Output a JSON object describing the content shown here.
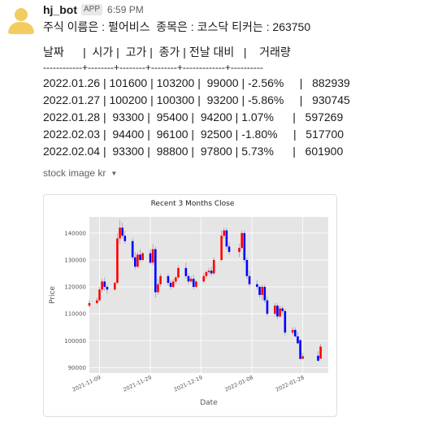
{
  "message": {
    "sender": "hj_bot",
    "badge": "APP",
    "time": "6:59 PM",
    "intro": "주식 이름은 : 펄어비스  종목은 : 코스닥 티커는 : 263750",
    "table_header": "날짜      |  시가 |  고가 |  종가 | 전날 대비   |    거래량",
    "table_divider": "------------+--------+--------+--------+-------------+----------",
    "rows": [
      "2022.01.26 | 101600 | 103200 |  99000 | -2.56%     |   882939",
      "2022.01.27 | 100200 | 100300 |  93200 | -5.86%     |   930745",
      "2022.01.28 |  93300 |  95400 |  94200 | 1.07%      |   597269",
      "2022.02.03 |  94400 |  96100 |  92500 | -1.80%     |   517700",
      "2022.02.04 |  93300 |  98800 |  97800 | 5.73%      |   601900"
    ],
    "attachment_label": "stock image kr"
  },
  "colors": {
    "up": "#ff0000",
    "down": "#0000ff",
    "plot_bg": "#e5e5e5",
    "grid": "#ffffff"
  },
  "chart_data": {
    "type": "candlestick",
    "title": "Recent 3 Months Close",
    "xlabel": "Date",
    "ylabel": "Price",
    "ylim": [
      88000,
      146000
    ],
    "yticks": [
      90000,
      100000,
      110000,
      120000,
      130000,
      140000
    ],
    "ytick_labels": [
      "90000",
      "100000",
      "110000",
      "120000",
      "130000",
      "140000"
    ],
    "xticks": [
      "2021-11-09",
      "2021-11-29",
      "2021-12-19",
      "2022-01-08",
      "2022-01-28"
    ],
    "xlim": [
      "2021-11-05",
      "2022-02-07"
    ],
    "grid": true,
    "candles": [
      {
        "date": "2021-11-05",
        "open": 113000,
        "high": 115000,
        "low": 112500,
        "close": 114000
      },
      {
        "date": "2021-11-08",
        "open": 114000,
        "high": 116000,
        "low": 113500,
        "close": 115000
      },
      {
        "date": "2021-11-09",
        "open": 115000,
        "high": 120000,
        "low": 114500,
        "close": 119000
      },
      {
        "date": "2021-11-10",
        "open": 119000,
        "high": 123000,
        "low": 118000,
        "close": 122000
      },
      {
        "date": "2021-11-11",
        "open": 122000,
        "high": 123500,
        "low": 118500,
        "close": 120000
      },
      {
        "date": "2021-11-12",
        "open": 120000,
        "high": 121000,
        "low": 117500,
        "close": 119000
      },
      {
        "date": "2021-11-15",
        "open": 119000,
        "high": 122000,
        "low": 118500,
        "close": 121500
      },
      {
        "date": "2021-11-16",
        "open": 121500,
        "high": 140000,
        "low": 121000,
        "close": 138000
      },
      {
        "date": "2021-11-17",
        "open": 138000,
        "high": 145000,
        "low": 136000,
        "close": 142000
      },
      {
        "date": "2021-11-18",
        "open": 142000,
        "high": 144000,
        "low": 138000,
        "close": 139000
      },
      {
        "date": "2021-11-19",
        "open": 139000,
        "high": 141000,
        "low": 136000,
        "close": 137000
      },
      {
        "date": "2021-11-22",
        "open": 137000,
        "high": 138000,
        "low": 130000,
        "close": 131000
      },
      {
        "date": "2021-11-23",
        "open": 131000,
        "high": 133000,
        "low": 126500,
        "close": 127500
      },
      {
        "date": "2021-11-24",
        "open": 127500,
        "high": 133000,
        "low": 127000,
        "close": 132000
      },
      {
        "date": "2021-11-25",
        "open": 132000,
        "high": 134000,
        "low": 129000,
        "close": 130000
      },
      {
        "date": "2021-11-26",
        "open": 130000,
        "high": 133000,
        "low": 129500,
        "close": 132500
      },
      {
        "date": "2021-11-29",
        "open": 132500,
        "high": 134000,
        "low": 128500,
        "close": 129000
      },
      {
        "date": "2021-11-30",
        "open": 129000,
        "high": 136000,
        "low": 128000,
        "close": 134000
      },
      {
        "date": "2021-12-01",
        "open": 134000,
        "high": 135000,
        "low": 116000,
        "close": 118000
      },
      {
        "date": "2021-12-02",
        "open": 118000,
        "high": 123000,
        "low": 117000,
        "close": 121000
      },
      {
        "date": "2021-12-03",
        "open": 121000,
        "high": 125000,
        "low": 120000,
        "close": 124000
      },
      {
        "date": "2021-12-06",
        "open": 124000,
        "high": 125000,
        "low": 120500,
        "close": 121500
      },
      {
        "date": "2021-12-07",
        "open": 121500,
        "high": 122500,
        "low": 119000,
        "close": 120000
      },
      {
        "date": "2021-12-08",
        "open": 120000,
        "high": 123000,
        "low": 119500,
        "close": 122000
      },
      {
        "date": "2021-12-09",
        "open": 122000,
        "high": 124000,
        "low": 121000,
        "close": 123500
      },
      {
        "date": "2021-12-10",
        "open": 123500,
        "high": 128000,
        "low": 123000,
        "close": 127000
      },
      {
        "date": "2021-12-13",
        "open": 127000,
        "high": 129000,
        "low": 123000,
        "close": 124000
      },
      {
        "date": "2021-12-14",
        "open": 124000,
        "high": 125000,
        "low": 121000,
        "close": 122000
      },
      {
        "date": "2021-12-15",
        "open": 122000,
        "high": 124000,
        "low": 121500,
        "close": 123000
      },
      {
        "date": "2021-12-16",
        "open": 123000,
        "high": 124500,
        "low": 119000,
        "close": 120000
      },
      {
        "date": "2021-12-17",
        "open": 120000,
        "high": 122500,
        "low": 119500,
        "close": 122000
      },
      {
        "date": "2021-12-20",
        "open": 122000,
        "high": 125000,
        "low": 121500,
        "close": 124000
      },
      {
        "date": "2021-12-21",
        "open": 124000,
        "high": 126000,
        "low": 123000,
        "close": 125500
      },
      {
        "date": "2021-12-22",
        "open": 125500,
        "high": 127000,
        "low": 124500,
        "close": 126000
      },
      {
        "date": "2021-12-23",
        "open": 126000,
        "high": 127500,
        "low": 124000,
        "close": 125000
      },
      {
        "date": "2021-12-24",
        "open": 125000,
        "high": 131000,
        "low": 124500,
        "close": 130000
      },
      {
        "date": "2021-12-27",
        "open": 130000,
        "high": 141000,
        "low": 129500,
        "close": 139000
      },
      {
        "date": "2021-12-28",
        "open": 139000,
        "high": 142000,
        "low": 138000,
        "close": 141000
      },
      {
        "date": "2021-12-29",
        "open": 141000,
        "high": 142000,
        "low": 134000,
        "close": 135000
      },
      {
        "date": "2021-12-30",
        "open": 135000,
        "high": 136500,
        "low": 132000,
        "close": 133000
      },
      {
        "date": "2022-01-03",
        "open": 133000,
        "high": 136000,
        "low": 131000,
        "close": 134500
      },
      {
        "date": "2022-01-04",
        "open": 134500,
        "high": 141000,
        "low": 134000,
        "close": 140000
      },
      {
        "date": "2022-01-05",
        "open": 140000,
        "high": 141000,
        "low": 129000,
        "close": 130000
      },
      {
        "date": "2022-01-06",
        "open": 130000,
        "high": 131000,
        "low": 123000,
        "close": 124000
      },
      {
        "date": "2022-01-07",
        "open": 124000,
        "high": 126000,
        "low": 120000,
        "close": 121000
      },
      {
        "date": "2022-01-10",
        "open": 121000,
        "high": 122500,
        "low": 119000,
        "close": 120000
      },
      {
        "date": "2022-01-11",
        "open": 120000,
        "high": 120500,
        "low": 116000,
        "close": 117000
      },
      {
        "date": "2022-01-12",
        "open": 117000,
        "high": 121000,
        "low": 115000,
        "close": 120000
      },
      {
        "date": "2022-01-13",
        "open": 120000,
        "high": 121000,
        "low": 114000,
        "close": 115000
      },
      {
        "date": "2022-01-14",
        "open": 115000,
        "high": 116500,
        "low": 109000,
        "close": 110000
      },
      {
        "date": "2022-01-17",
        "open": 110000,
        "high": 114000,
        "low": 109000,
        "close": 113000
      },
      {
        "date": "2022-01-18",
        "open": 113000,
        "high": 114000,
        "low": 108000,
        "close": 109000
      },
      {
        "date": "2022-01-19",
        "open": 109000,
        "high": 113000,
        "low": 108500,
        "close": 112000
      },
      {
        "date": "2022-01-20",
        "open": 112000,
        "high": 113000,
        "low": 110000,
        "close": 111000
      },
      {
        "date": "2022-01-21",
        "open": 111000,
        "high": 112000,
        "low": 102000,
        "close": 103000
      },
      {
        "date": "2022-01-24",
        "open": 103000,
        "high": 105000,
        "low": 102000,
        "close": 104000
      },
      {
        "date": "2022-01-25",
        "open": 104000,
        "high": 105000,
        "low": 101000,
        "close": 101600
      },
      {
        "date": "2022-01-26",
        "open": 101600,
        "high": 103200,
        "low": 99000,
        "close": 99000
      },
      {
        "date": "2022-01-27",
        "open": 100200,
        "high": 100300,
        "low": 93200,
        "close": 93200
      },
      {
        "date": "2022-01-28",
        "open": 93300,
        "high": 95400,
        "low": 93000,
        "close": 94200
      },
      {
        "date": "2022-02-03",
        "open": 94400,
        "high": 96100,
        "low": 92500,
        "close": 92500
      },
      {
        "date": "2022-02-04",
        "open": 93300,
        "high": 98800,
        "low": 93200,
        "close": 97800
      }
    ]
  }
}
